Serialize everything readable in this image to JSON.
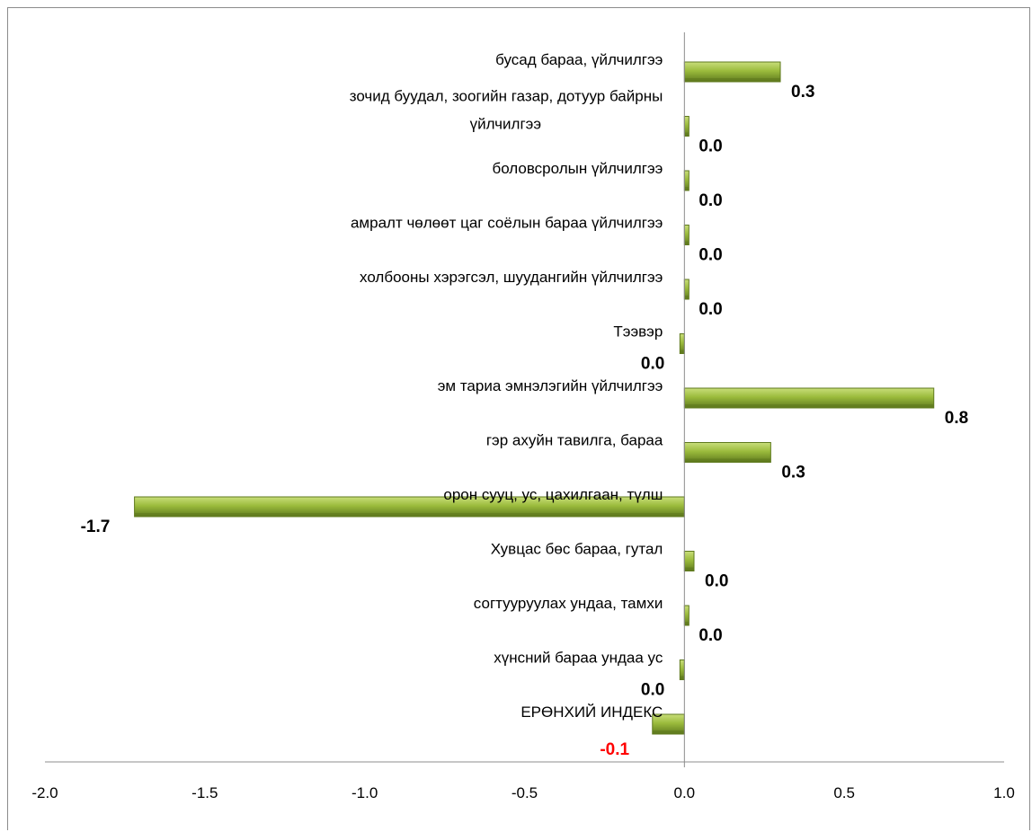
{
  "chart_data": {
    "type": "bar",
    "orientation": "horizontal",
    "xlim": [
      -2.0,
      1.0
    ],
    "x_ticks": [
      "-2.0",
      "-1.5",
      "-1.0",
      "-0.5",
      "0.0",
      "0.5",
      "1.0"
    ],
    "grid": false,
    "legend": "none",
    "bar_color": "#9bbb3c",
    "bar_dark_color": "#5f7a1e",
    "highlight_label_color": "#ff0000",
    "categories": [
      {
        "label_lines": [
          "бусад бараа, үйлчилгээ"
        ],
        "value": 0.3,
        "value_label": "0.3"
      },
      {
        "label_lines": [
          "зочид буудал, зоогийн газар, дотуур байрны",
          "үйлчилгээ"
        ],
        "value": 0.0,
        "value_label": "0.0"
      },
      {
        "label_lines": [
          "боловсролын үйлчилгээ"
        ],
        "value": 0.0,
        "value_label": "0.0"
      },
      {
        "label_lines": [
          "амралт чөлөөт цаг соёлын бараа  үйлчилгээ"
        ],
        "value": 0.0,
        "value_label": "0.0"
      },
      {
        "label_lines": [
          "холбооны хэрэгсэл, шуудангийн  үйлчилгээ"
        ],
        "value": 0.0,
        "value_label": "0.0"
      },
      {
        "label_lines": [
          "Тээвэр"
        ],
        "value": -0.01,
        "value_label": "0.0"
      },
      {
        "label_lines": [
          "эм тариа эмнэлэгийн үйлчилгээ"
        ],
        "value": 0.78,
        "value_label": "0.8"
      },
      {
        "label_lines": [
          "гэр ахуйн тавилга, бараа"
        ],
        "value": 0.27,
        "value_label": "0.3"
      },
      {
        "label_lines": [
          "орон сууц, ус, цахилгаан,  түлш"
        ],
        "value": -1.72,
        "value_label": "-1.7"
      },
      {
        "label_lines": [
          "Хувцас бөс бараа,  гутал"
        ],
        "value": 0.03,
        "value_label": "0.0"
      },
      {
        "label_lines": [
          "согтууруулах ундаа, тамхи"
        ],
        "value": 0.0,
        "value_label": "0.0"
      },
      {
        "label_lines": [
          "хүнсний бараа ундаа ус"
        ],
        "value": -0.01,
        "value_label": "0.0"
      },
      {
        "label_lines": [
          "ЕРӨНХИЙ ИНДЕКС"
        ],
        "value": -0.1,
        "value_label": "-0.1",
        "highlight": true
      }
    ]
  }
}
